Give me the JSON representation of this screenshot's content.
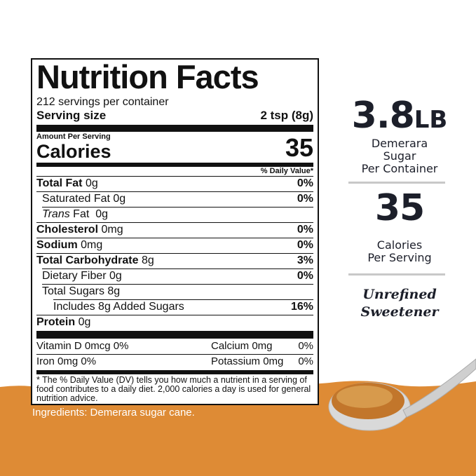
{
  "colors": {
    "orange": "#DE8B35",
    "text": "#1c1f2a"
  },
  "label": {
    "title": "Nutrition Facts",
    "servings_per_container": "212 servings per container",
    "serving_size_label": "Serving size",
    "serving_size_value": "2 tsp (8g)",
    "amount_per_serving": "Amount Per Serving",
    "calories_label": "Calories",
    "calories_value": "35",
    "daily_value_header": "% Daily Value*",
    "nutrients": [
      {
        "name": "Total Fat",
        "amount": "0g",
        "pct": "0%"
      },
      {
        "name": "Saturated Fat",
        "amount": "0g",
        "pct": "0%"
      },
      {
        "name": "Trans",
        "name2": "Fat",
        "amount": "0g",
        "pct": ""
      },
      {
        "name": "Cholesterol",
        "amount": "0mg",
        "pct": "0%"
      },
      {
        "name": "Sodium",
        "amount": "0mg",
        "pct": "0%"
      },
      {
        "name": "Total Carbohydrate",
        "amount": "8g",
        "pct": "3%"
      },
      {
        "name": "Dietary Fiber",
        "amount": "0g",
        "pct": "0%"
      },
      {
        "name": "Total Sugars",
        "amount": "8g",
        "pct": ""
      },
      {
        "name": "Includes 8g Added Sugars",
        "amount": "",
        "pct": "16%"
      },
      {
        "name": "Protein",
        "amount": "0g",
        "pct": ""
      }
    ],
    "vitamins": [
      {
        "left": "Vitamin D  0mcg 0%",
        "right_name": "Calcium  0mg",
        "right_pct": "0%"
      },
      {
        "left": "Iron  0mg 0%",
        "right_name": "Potassium  0mg",
        "right_pct": "0%"
      }
    ],
    "footnote": "* The % Daily Value (DV) tells you how much a nutrient in a serving of food contributes to a daily diet. 2,000 calories a day is used for general nutrition advice."
  },
  "ingredients": "Ingredients: Demerara sugar cane.",
  "side": {
    "weight": "3.8",
    "weight_unit": "LB",
    "weight_caption": [
      "Demerara",
      "Sugar",
      "Per Container"
    ],
    "calories": "35",
    "calories_caption": [
      "Calories",
      "Per Serving"
    ],
    "tagline": [
      "Unrefined",
      "Sweetener"
    ]
  }
}
